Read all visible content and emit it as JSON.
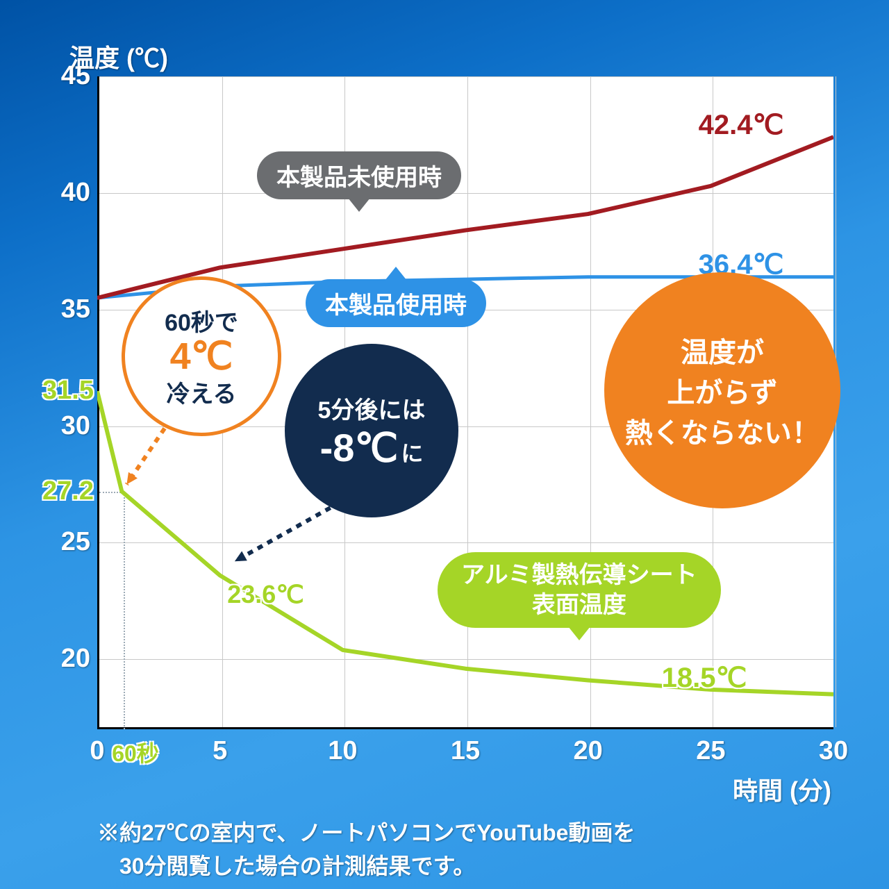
{
  "background_gradient": [
    "#0052a5",
    "#0d6fc8",
    "#2d94e4",
    "#3aa0eb",
    "#2d94e4"
  ],
  "chart": {
    "type": "line",
    "y_title": "温度 (℃)",
    "x_title": "時間 (分)",
    "ylim": [
      17,
      45
    ],
    "xlim": [
      0,
      30
    ],
    "yticks": [
      20,
      25,
      30,
      35,
      40,
      45
    ],
    "yticks_extra_green": [
      27.2,
      31.5
    ],
    "xticks": [
      0,
      5,
      10,
      15,
      20,
      25,
      30
    ],
    "xtick_extra_label": "60秒",
    "grid_color": "#c8c8c8",
    "plot_bg": "#ffffff",
    "axis_color": "#000000",
    "tick_font_size": 38,
    "title_font_size": 36,
    "series": {
      "without_product": {
        "label_pill": "本製品未使用時",
        "pill_bg": "#6b6d70",
        "color": "#a21b21",
        "width": 6,
        "x": [
          0,
          5,
          10,
          15,
          20,
          25,
          30
        ],
        "y": [
          35.5,
          36.8,
          37.6,
          38.4,
          39.1,
          40.3,
          42.4
        ],
        "end_label": "42.4℃",
        "end_label_color": "#a21b21"
      },
      "with_product": {
        "label_pill": "本製品使用時",
        "pill_bg": "#2e92e6",
        "color": "#2e92e6",
        "width": 5,
        "x": [
          0,
          5,
          10,
          15,
          20,
          25,
          30
        ],
        "y": [
          35.5,
          36.0,
          36.2,
          36.3,
          36.4,
          36.4,
          36.4
        ],
        "end_label": "36.4℃",
        "end_label_color": "#2e92e6"
      },
      "aluminum_sheet": {
        "label_pill": "アルミ製熱伝導シート\n表面温度",
        "pill_bg": "#a5d527",
        "color": "#a5d527",
        "width": 6,
        "x": [
          0,
          1,
          5,
          10,
          15,
          20,
          25,
          30
        ],
        "y": [
          31.5,
          27.2,
          23.6,
          20.4,
          19.6,
          19.1,
          18.7,
          18.5
        ],
        "mid_label": "23.6℃",
        "mid_label_color": "#a5d527",
        "mid_label_at_x": 5,
        "end_label": "18.5℃",
        "end_label_color": "#a5d527"
      }
    },
    "callouts": {
      "orange_small": {
        "line1": "60秒で",
        "line2_main": "4℃",
        "line3": "冷える",
        "line2_color": "#f08220",
        "text_color": "#122c4e",
        "border_color": "#f08220",
        "arrow_color": "#f08220"
      },
      "navy_circle": {
        "line1": "5分後には",
        "line2_main": "-8℃",
        "line2_suffix": "に",
        "bg": "#122c4e",
        "arrow_color": "#122c4e"
      },
      "orange_big": {
        "line1": "温度が",
        "line2": "上がらず",
        "line3": "熱くならない！",
        "bg": "#f08220"
      }
    }
  },
  "footnote": "※約27℃の室内で、ノートパソコンでYouTube動画を\n　30分閲覧した場合の計測結果です。"
}
